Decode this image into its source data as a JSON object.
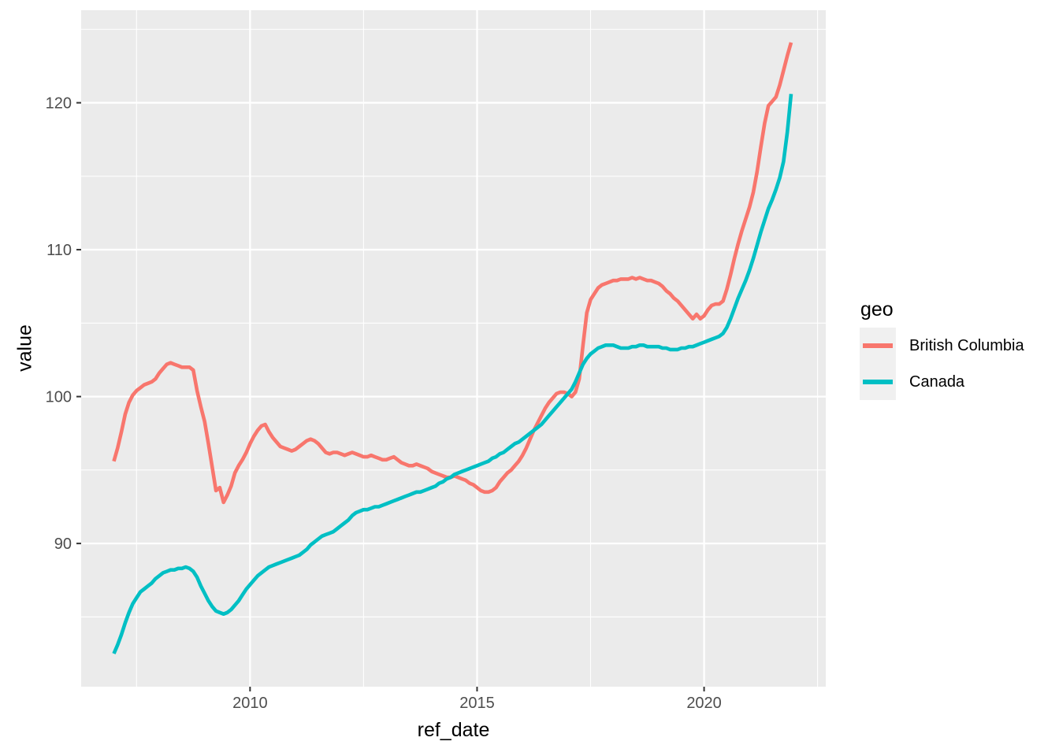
{
  "chart_data": {
    "type": "line",
    "title": "",
    "xlabel": "ref_date",
    "ylabel": "value",
    "x_start": 2007.0,
    "x_step_months": 1,
    "x_ticks": [
      "2010",
      "2015",
      "2020"
    ],
    "x_tick_values": [
      2010,
      2015,
      2020
    ],
    "x_minor_ticks": [
      2007.5,
      2012.5,
      2017.5,
      2022.5
    ],
    "x_range": [
      2006.28,
      2022.68
    ],
    "y_ticks": [
      "90",
      "100",
      "110",
      "120"
    ],
    "y_tick_values": [
      90,
      100,
      110,
      120
    ],
    "y_minor_ticks": [
      85,
      95,
      105,
      115,
      125
    ],
    "y_range": [
      80.25,
      126.3
    ],
    "grid": true,
    "panel_color": "#EBEBEB",
    "gridline_color": "#FFFFFF",
    "tick_label_color": "#4D4D4D",
    "legend_title": "geo",
    "legend_position": "right",
    "legend_key_fill": "#F0F0F0",
    "series": [
      {
        "name": "British Columbia",
        "color": "#F8766D",
        "values": [
          95.6,
          96.5,
          97.6,
          98.8,
          99.6,
          100.1,
          100.4,
          100.6,
          100.8,
          100.9,
          101.0,
          101.2,
          101.6,
          101.9,
          102.2,
          102.3,
          102.2,
          102.1,
          102.0,
          102.0,
          102.0,
          101.8,
          100.4,
          99.3,
          98.3,
          96.8,
          95.2,
          93.6,
          93.8,
          92.8,
          93.3,
          93.9,
          94.8,
          95.3,
          95.7,
          96.2,
          96.8,
          97.3,
          97.7,
          98.0,
          98.1,
          97.6,
          97.2,
          96.9,
          96.6,
          96.5,
          96.4,
          96.3,
          96.4,
          96.6,
          96.8,
          97.0,
          97.1,
          97.0,
          96.8,
          96.5,
          96.2,
          96.1,
          96.2,
          96.2,
          96.1,
          96.0,
          96.1,
          96.2,
          96.1,
          96.0,
          95.9,
          95.9,
          96.0,
          95.9,
          95.8,
          95.7,
          95.7,
          95.8,
          95.9,
          95.7,
          95.5,
          95.4,
          95.3,
          95.3,
          95.4,
          95.3,
          95.2,
          95.1,
          94.9,
          94.8,
          94.7,
          94.6,
          94.5,
          94.5,
          94.6,
          94.5,
          94.4,
          94.3,
          94.1,
          94.0,
          93.8,
          93.6,
          93.5,
          93.5,
          93.6,
          93.8,
          94.2,
          94.5,
          94.8,
          95.0,
          95.3,
          95.6,
          96.0,
          96.5,
          97.1,
          97.7,
          98.2,
          98.7,
          99.2,
          99.6,
          99.9,
          100.2,
          100.3,
          100.3,
          100.2,
          100.0,
          100.3,
          101.2,
          103.5,
          105.7,
          106.6,
          107.0,
          107.4,
          107.6,
          107.7,
          107.8,
          107.9,
          107.9,
          108.0,
          108.0,
          108.0,
          108.1,
          108.0,
          108.1,
          108.0,
          107.9,
          107.9,
          107.8,
          107.7,
          107.5,
          107.2,
          107.0,
          106.7,
          106.5,
          106.2,
          105.9,
          105.6,
          105.3,
          105.6,
          105.3,
          105.5,
          105.9,
          106.2,
          106.3,
          106.3,
          106.5,
          107.3,
          108.3,
          109.4,
          110.4,
          111.3,
          112.1,
          112.9,
          113.9,
          115.3,
          117.0,
          118.6,
          119.8,
          120.1,
          120.4,
          121.2,
          122.2,
          123.2,
          124.1
        ]
      },
      {
        "name": "Canada",
        "color": "#00BFC4",
        "values": [
          82.5,
          83.1,
          83.8,
          84.6,
          85.3,
          85.9,
          86.3,
          86.7,
          86.9,
          87.1,
          87.3,
          87.6,
          87.8,
          88.0,
          88.1,
          88.2,
          88.2,
          88.3,
          88.3,
          88.4,
          88.3,
          88.1,
          87.7,
          87.1,
          86.6,
          86.1,
          85.7,
          85.4,
          85.3,
          85.2,
          85.3,
          85.5,
          85.8,
          86.1,
          86.5,
          86.9,
          87.2,
          87.5,
          87.8,
          88.0,
          88.2,
          88.4,
          88.5,
          88.6,
          88.7,
          88.8,
          88.9,
          89.0,
          89.1,
          89.2,
          89.4,
          89.6,
          89.9,
          90.1,
          90.3,
          90.5,
          90.6,
          90.7,
          90.8,
          91.0,
          91.2,
          91.4,
          91.6,
          91.9,
          92.1,
          92.2,
          92.3,
          92.3,
          92.4,
          92.5,
          92.5,
          92.6,
          92.7,
          92.8,
          92.9,
          93.0,
          93.1,
          93.2,
          93.3,
          93.4,
          93.5,
          93.5,
          93.6,
          93.7,
          93.8,
          93.9,
          94.1,
          94.2,
          94.4,
          94.5,
          94.7,
          94.8,
          94.9,
          95.0,
          95.1,
          95.2,
          95.3,
          95.4,
          95.5,
          95.6,
          95.8,
          95.9,
          96.1,
          96.2,
          96.4,
          96.6,
          96.8,
          96.9,
          97.1,
          97.3,
          97.5,
          97.7,
          97.9,
          98.1,
          98.4,
          98.7,
          99.0,
          99.3,
          99.6,
          99.9,
          100.2,
          100.5,
          101.0,
          101.6,
          102.2,
          102.6,
          102.9,
          103.1,
          103.3,
          103.4,
          103.5,
          103.5,
          103.5,
          103.4,
          103.3,
          103.3,
          103.3,
          103.4,
          103.4,
          103.5,
          103.5,
          103.4,
          103.4,
          103.4,
          103.4,
          103.3,
          103.3,
          103.2,
          103.2,
          103.2,
          103.3,
          103.3,
          103.4,
          103.4,
          103.5,
          103.6,
          103.7,
          103.8,
          103.9,
          104.0,
          104.1,
          104.3,
          104.7,
          105.3,
          106.0,
          106.7,
          107.3,
          107.9,
          108.6,
          109.4,
          110.3,
          111.2,
          112.0,
          112.8,
          113.4,
          114.1,
          114.9,
          116.0,
          118.0,
          120.6
        ]
      }
    ]
  }
}
